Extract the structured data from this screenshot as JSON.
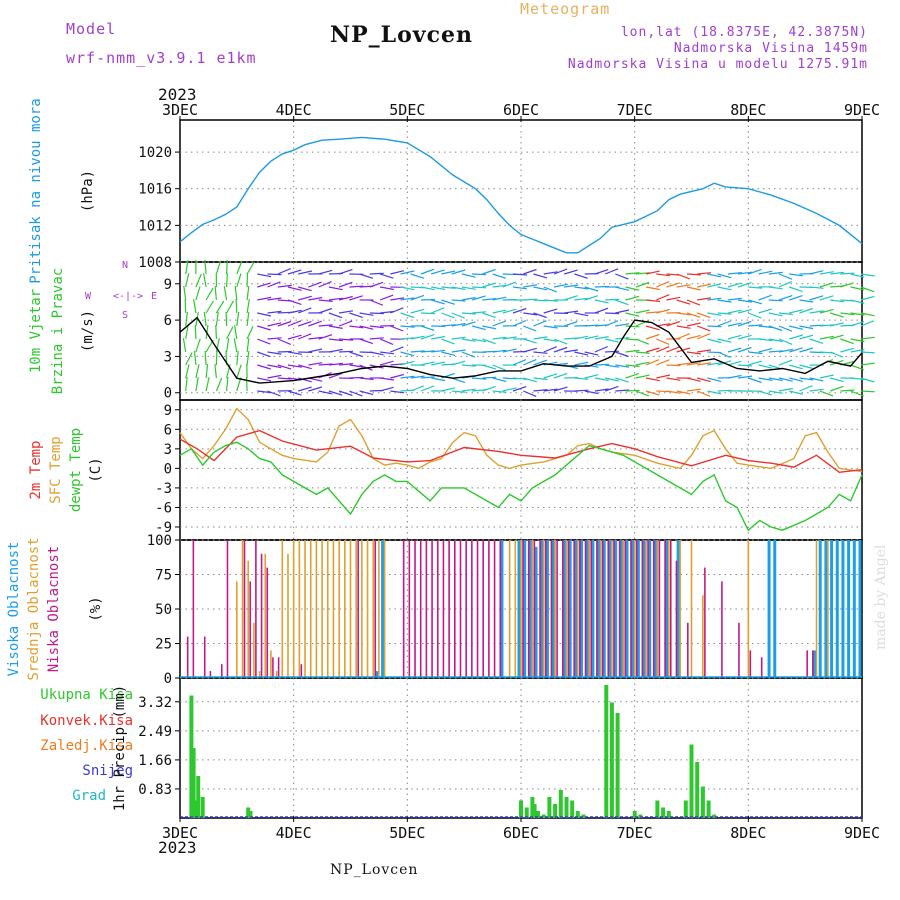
{
  "header": {
    "model_label": "Model",
    "model_name": "wrf-nmm_v3.9.1 e1km",
    "title": "NP_Lovcen",
    "meteogram": "Meteogram",
    "lonlat": "lon,lat (18.8375E, 42.3875N)",
    "altitude": "Nadmorska Visina 1459m",
    "model_altitude": "Nadmorska Visina u modelu 1275.91m",
    "year_top": "2023",
    "year_bottom": "2023",
    "footer": "NP_Lovcen",
    "watermark": "made by Angel"
  },
  "colors": {
    "pressure": "#1e9be0",
    "temp2m": "#e8322e",
    "sfc_temp": "#e0a030",
    "dewpoint": "#2ec82e",
    "high_cloud": "#1a9fe8",
    "mid_cloud": "#e0a030",
    "low_cloud": "#c01a8a",
    "precip_total": "#2ec82e",
    "precip_conv": "#e8322e",
    "precip_frozen": "#f07a20",
    "snow": "#3a3ad0",
    "graupel": "#20b8c0",
    "model": "#a040d0",
    "meteogram": "#e8b060"
  },
  "time_axis": {
    "labels": [
      "3DEC",
      "4DEC",
      "5DEC",
      "6DEC",
      "7DEC",
      "8DEC",
      "9DEC"
    ],
    "days": [
      0,
      1,
      2,
      3,
      4,
      5,
      6
    ]
  },
  "chart_data": [
    {
      "type": "line",
      "ylabel": "(hPa)",
      "series_label": "Pritisak na nivou mora",
      "ylim": [
        1008,
        1023.5
      ],
      "yticks": [
        1008,
        1012,
        1016,
        1020
      ],
      "series": [
        {
          "name": "Pritisak na nivou mora",
          "x": [
            0,
            0.1,
            0.2,
            0.3,
            0.4,
            0.5,
            0.6,
            0.7,
            0.8,
            0.9,
            1.0,
            1.1,
            1.25,
            1.4,
            1.6,
            1.8,
            2.0,
            2.2,
            2.4,
            2.6,
            2.7,
            2.8,
            2.9,
            3.0,
            3.1,
            3.2,
            3.3,
            3.4,
            3.5,
            3.6,
            3.7,
            3.8,
            4.0,
            4.1,
            4.2,
            4.3,
            4.4,
            4.6,
            4.7,
            4.8,
            5.0,
            5.2,
            5.4,
            5.6,
            5.8,
            6.0
          ],
          "y": [
            1010.2,
            1011.2,
            1012.1,
            1012.6,
            1013.2,
            1014.0,
            1016.0,
            1017.8,
            1019.0,
            1019.8,
            1020.2,
            1020.8,
            1021.3,
            1021.4,
            1021.6,
            1021.4,
            1021.0,
            1019.5,
            1017.5,
            1016.0,
            1014.8,
            1013.3,
            1012.0,
            1011.0,
            1010.5,
            1010.0,
            1009.5,
            1009.0,
            1009.0,
            1009.8,
            1010.6,
            1011.8,
            1012.4,
            1013.0,
            1013.6,
            1014.8,
            1015.4,
            1016.0,
            1016.6,
            1016.2,
            1016.0,
            1015.3,
            1014.4,
            1013.3,
            1012.0,
            1010.0
          ]
        }
      ]
    },
    {
      "type": "line",
      "ylabel": "(m/s)",
      "series_labels": [
        "10m Vjetar",
        "Brzina i Pravac"
      ],
      "direction_legend": [
        "W",
        "<-|->",
        "E",
        "S",
        "N"
      ],
      "ylim": [
        -0.6,
        10.8
      ],
      "yticks": [
        0,
        3,
        6,
        9
      ],
      "series": [
        {
          "name": "10m Vjetar",
          "x": [
            0,
            0.15,
            0.3,
            0.5,
            0.7,
            1.0,
            1.2,
            1.4,
            1.6,
            1.8,
            2.0,
            2.2,
            2.4,
            2.6,
            2.8,
            3.0,
            3.2,
            3.4,
            3.6,
            3.8,
            3.9,
            4.0,
            4.15,
            4.3,
            4.5,
            4.7,
            4.9,
            5.1,
            5.3,
            5.5,
            5.7,
            5.9,
            6.0
          ],
          "y": [
            5.0,
            6.2,
            4.0,
            1.2,
            0.8,
            1.0,
            1.3,
            1.6,
            2.0,
            2.2,
            2.0,
            1.5,
            1.2,
            1.4,
            1.8,
            1.8,
            2.4,
            2.2,
            2.2,
            3.0,
            4.6,
            6.0,
            5.8,
            5.0,
            2.5,
            2.8,
            2.0,
            1.8,
            2.0,
            1.6,
            2.6,
            2.2,
            3.3
          ]
        }
      ]
    },
    {
      "type": "line",
      "ylabel": "(C)",
      "ylim": [
        -11,
        10.5
      ],
      "yticks": [
        -9,
        -6,
        -3,
        0,
        3,
        6,
        9
      ],
      "series": [
        {
          "name": "2m Temp",
          "x": [
            0,
            0.15,
            0.3,
            0.5,
            0.7,
            0.9,
            1.2,
            1.5,
            1.7,
            2.0,
            2.2,
            2.5,
            2.8,
            3.0,
            3.3,
            3.6,
            3.8,
            4.0,
            4.2,
            4.5,
            4.8,
            5.0,
            5.2,
            5.4,
            5.6,
            5.8,
            6.0
          ],
          "y": [
            4.5,
            3.0,
            1.2,
            4.8,
            5.8,
            4.2,
            2.8,
            3.4,
            1.6,
            1.0,
            1.2,
            3.2,
            2.6,
            2.0,
            1.6,
            3.0,
            3.8,
            3.0,
            1.8,
            0.4,
            2.0,
            1.2,
            0.8,
            0.2,
            2.0,
            -0.6,
            -0.2
          ]
        },
        {
          "name": "SFC Temp",
          "x": [
            0,
            0.1,
            0.2,
            0.3,
            0.4,
            0.5,
            0.6,
            0.7,
            0.8,
            0.9,
            1.0,
            1.2,
            1.3,
            1.4,
            1.5,
            1.6,
            1.7,
            1.8,
            1.9,
            2.0,
            2.1,
            2.2,
            2.3,
            2.4,
            2.5,
            2.6,
            2.7,
            2.8,
            2.9,
            3.0,
            3.2,
            3.4,
            3.5,
            3.6,
            3.7,
            3.8,
            4.0,
            4.2,
            4.4,
            4.5,
            4.6,
            4.7,
            4.8,
            4.9,
            5.0,
            5.2,
            5.4,
            5.5,
            5.6,
            5.7,
            5.8,
            6.0
          ],
          "y": [
            5.5,
            3.0,
            1.5,
            3.5,
            6.0,
            9.2,
            7.5,
            4.0,
            3.0,
            2.0,
            1.5,
            1.0,
            2.5,
            6.5,
            7.5,
            5.0,
            1.5,
            0.5,
            0.8,
            0.5,
            0.0,
            1.0,
            1.5,
            4.0,
            5.5,
            5.0,
            2.0,
            0.5,
            0.0,
            0.5,
            1.0,
            2.0,
            3.5,
            3.8,
            3.0,
            2.5,
            2.0,
            0.8,
            0.0,
            2.0,
            5.0,
            5.8,
            3.0,
            0.8,
            0.5,
            0.0,
            1.5,
            5.0,
            5.5,
            2.5,
            0.0,
            -0.5
          ]
        },
        {
          "name": "dewpt Temp",
          "x": [
            0,
            0.1,
            0.2,
            0.3,
            0.4,
            0.5,
            0.6,
            0.7,
            0.8,
            0.9,
            1.0,
            1.2,
            1.3,
            1.4,
            1.5,
            1.6,
            1.7,
            1.8,
            1.9,
            2.0,
            2.1,
            2.2,
            2.3,
            2.5,
            2.7,
            2.8,
            2.9,
            3.0,
            3.1,
            3.3,
            3.5,
            3.6,
            3.7,
            3.9,
            4.0,
            4.2,
            4.4,
            4.5,
            4.6,
            4.7,
            4.8,
            4.9,
            5.0,
            5.1,
            5.2,
            5.3,
            5.5,
            5.7,
            5.8,
            5.9,
            6.0
          ],
          "y": [
            2.0,
            3.0,
            0.5,
            2.5,
            3.5,
            4.0,
            3.0,
            1.5,
            1.0,
            -1.0,
            -2.0,
            -4.0,
            -3.0,
            -5.0,
            -7.0,
            -4.0,
            -2.0,
            -1.0,
            -2.0,
            -2.0,
            -3.5,
            -5.0,
            -3.0,
            -3.0,
            -5.0,
            -6.0,
            -4.0,
            -5.0,
            -3.0,
            -1.0,
            2.0,
            3.5,
            3.0,
            2.0,
            1.0,
            -1.0,
            -3.0,
            -4.0,
            -2.0,
            -1.0,
            -5.0,
            -6.0,
            -9.5,
            -8.0,
            -9.0,
            -9.5,
            -8.0,
            -6.0,
            -4.0,
            -5.0,
            -1.0
          ]
        }
      ],
      "series_labels": [
        "2m Temp",
        "SFC Temp",
        "dewpt Temp"
      ]
    },
    {
      "type": "bar",
      "ylabel": "(%)",
      "ylim": [
        0,
        100
      ],
      "yticks": [
        0,
        25,
        50,
        75,
        100
      ],
      "series": [
        {
          "name": "Visoka Oblacnost",
          "x": [
            1.75,
            1.8,
            2.85,
            3.0,
            3.05,
            3.1,
            3.15,
            3.2,
            3.25,
            3.3,
            3.4,
            3.45,
            3.5,
            3.55,
            3.6,
            3.65,
            3.7,
            3.75,
            3.8,
            3.85,
            3.9,
            3.95,
            4.0,
            4.05,
            4.1,
            4.15,
            4.2,
            4.3,
            4.4,
            5.2,
            5.25,
            5.6,
            5.65,
            5.7,
            5.75,
            5.8,
            5.85,
            5.9,
            5.95,
            6.0
          ],
          "y": [
            5,
            100,
            100,
            100,
            100,
            100,
            95,
            100,
            100,
            100,
            100,
            100,
            100,
            100,
            100,
            100,
            100,
            100,
            100,
            100,
            100,
            100,
            100,
            100,
            100,
            100,
            100,
            100,
            100,
            100,
            100,
            20,
            100,
            100,
            100,
            100,
            100,
            100,
            100,
            100
          ]
        },
        {
          "name": "Srednja Oblacnost",
          "x": [
            0.5,
            0.55,
            0.6,
            0.65,
            0.7,
            0.75,
            0.8,
            0.85,
            0.9,
            0.95,
            1.0,
            1.05,
            1.1,
            1.15,
            1.2,
            1.25,
            1.3,
            1.35,
            1.4,
            1.45,
            1.5,
            1.55,
            1.6,
            1.65,
            1.7,
            1.75,
            1.8,
            2.9,
            2.95,
            3.0,
            3.1,
            3.2,
            3.3,
            3.4,
            3.5,
            3.6,
            3.7,
            3.8,
            3.9,
            4.0,
            4.1,
            4.2,
            4.3,
            4.4,
            4.5,
            4.6,
            5.0,
            5.6,
            5.7
          ],
          "y": [
            70,
            100,
            85,
            40,
            5,
            90,
            20,
            5,
            100,
            90,
            100,
            100,
            100,
            100,
            100,
            100,
            100,
            100,
            100,
            100,
            100,
            100,
            100,
            100,
            100,
            100,
            100,
            100,
            100,
            100,
            100,
            100,
            100,
            100,
            100,
            100,
            100,
            100,
            100,
            100,
            100,
            100,
            100,
            100,
            100,
            60,
            100,
            100,
            100
          ]
        },
        {
          "name": "Niska Oblacnost",
          "x": [
            0.05,
            0.1,
            0.2,
            0.25,
            0.35,
            0.4,
            0.55,
            0.6,
            0.65,
            0.7,
            0.75,
            0.8,
            0.85,
            1.05,
            1.55,
            1.7,
            1.95,
            2.0,
            2.05,
            2.1,
            2.15,
            2.2,
            2.25,
            2.3,
            2.35,
            2.4,
            2.45,
            2.5,
            2.55,
            2.6,
            2.65,
            2.7,
            2.75,
            2.8,
            3.0,
            3.05,
            3.1,
            3.15,
            3.2,
            3.25,
            3.3,
            3.35,
            3.4,
            3.45,
            3.5,
            3.55,
            3.6,
            3.65,
            3.7,
            3.75,
            3.8,
            3.85,
            3.9,
            3.95,
            4.0,
            4.05,
            4.1,
            4.15,
            4.2,
            4.25,
            4.3,
            4.35,
            4.45,
            4.6,
            4.75,
            4.9,
            5.0,
            5.1,
            5.5,
            5.55
          ],
          "y": [
            30,
            100,
            30,
            5,
            10,
            100,
            100,
            70,
            100,
            90,
            80,
            15,
            15,
            10,
            100,
            100,
            100,
            100,
            100,
            100,
            100,
            100,
            100,
            100,
            100,
            100,
            100,
            100,
            100,
            100,
            100,
            100,
            100,
            100,
            100,
            100,
            100,
            100,
            100,
            100,
            100,
            100,
            100,
            100,
            100,
            100,
            100,
            100,
            100,
            100,
            100,
            100,
            100,
            100,
            100,
            100,
            100,
            100,
            100,
            100,
            100,
            85,
            40,
            80,
            70,
            40,
            20,
            15,
            20,
            20
          ]
        }
      ],
      "series_labels": [
        "Visoka Oblacnost",
        "Srednja Oblacnost",
        "Niska Oblacnost"
      ]
    },
    {
      "type": "bar",
      "ylabel": "1hr Precip (mm)",
      "ylim": [
        0,
        4.0
      ],
      "yticks": [
        0.83,
        1.66,
        2.49,
        3.32
      ],
      "series": [
        {
          "name": "Ukupna Kisa",
          "x": [
            0.1,
            0.12,
            0.14,
            0.16,
            0.2,
            0.6,
            0.62,
            3.0,
            3.05,
            3.1,
            3.12,
            3.15,
            3.2,
            3.25,
            3.3,
            3.35,
            3.4,
            3.45,
            3.5,
            3.55,
            3.6,
            3.65,
            3.7,
            3.75,
            3.8,
            3.85,
            3.9,
            3.95,
            4.0,
            4.05,
            4.1,
            4.15,
            4.2,
            4.25,
            4.3,
            4.4,
            4.45,
            4.5,
            4.55,
            4.6,
            4.65,
            4.7
          ],
          "y": [
            3.5,
            2.0,
            0.5,
            1.2,
            0.6,
            0.3,
            0.2,
            0.5,
            0.3,
            0.6,
            0.4,
            0.2,
            0.1,
            0.6,
            0.4,
            0.8,
            0.6,
            0.5,
            0.2,
            0.1,
            0.0,
            0.0,
            0.0,
            3.8,
            3.3,
            3.0,
            0.0,
            0.0,
            0.2,
            0.1,
            0.0,
            0.0,
            0.5,
            0.3,
            0.2,
            0.0,
            0.5,
            2.1,
            1.6,
            0.9,
            0.5,
            0.1
          ]
        }
      ],
      "series_labels": [
        "Ukupna Kisa",
        "Konvek.Kisa",
        "Zaledj.Kisa",
        "Snijeg",
        "Grad"
      ]
    }
  ]
}
